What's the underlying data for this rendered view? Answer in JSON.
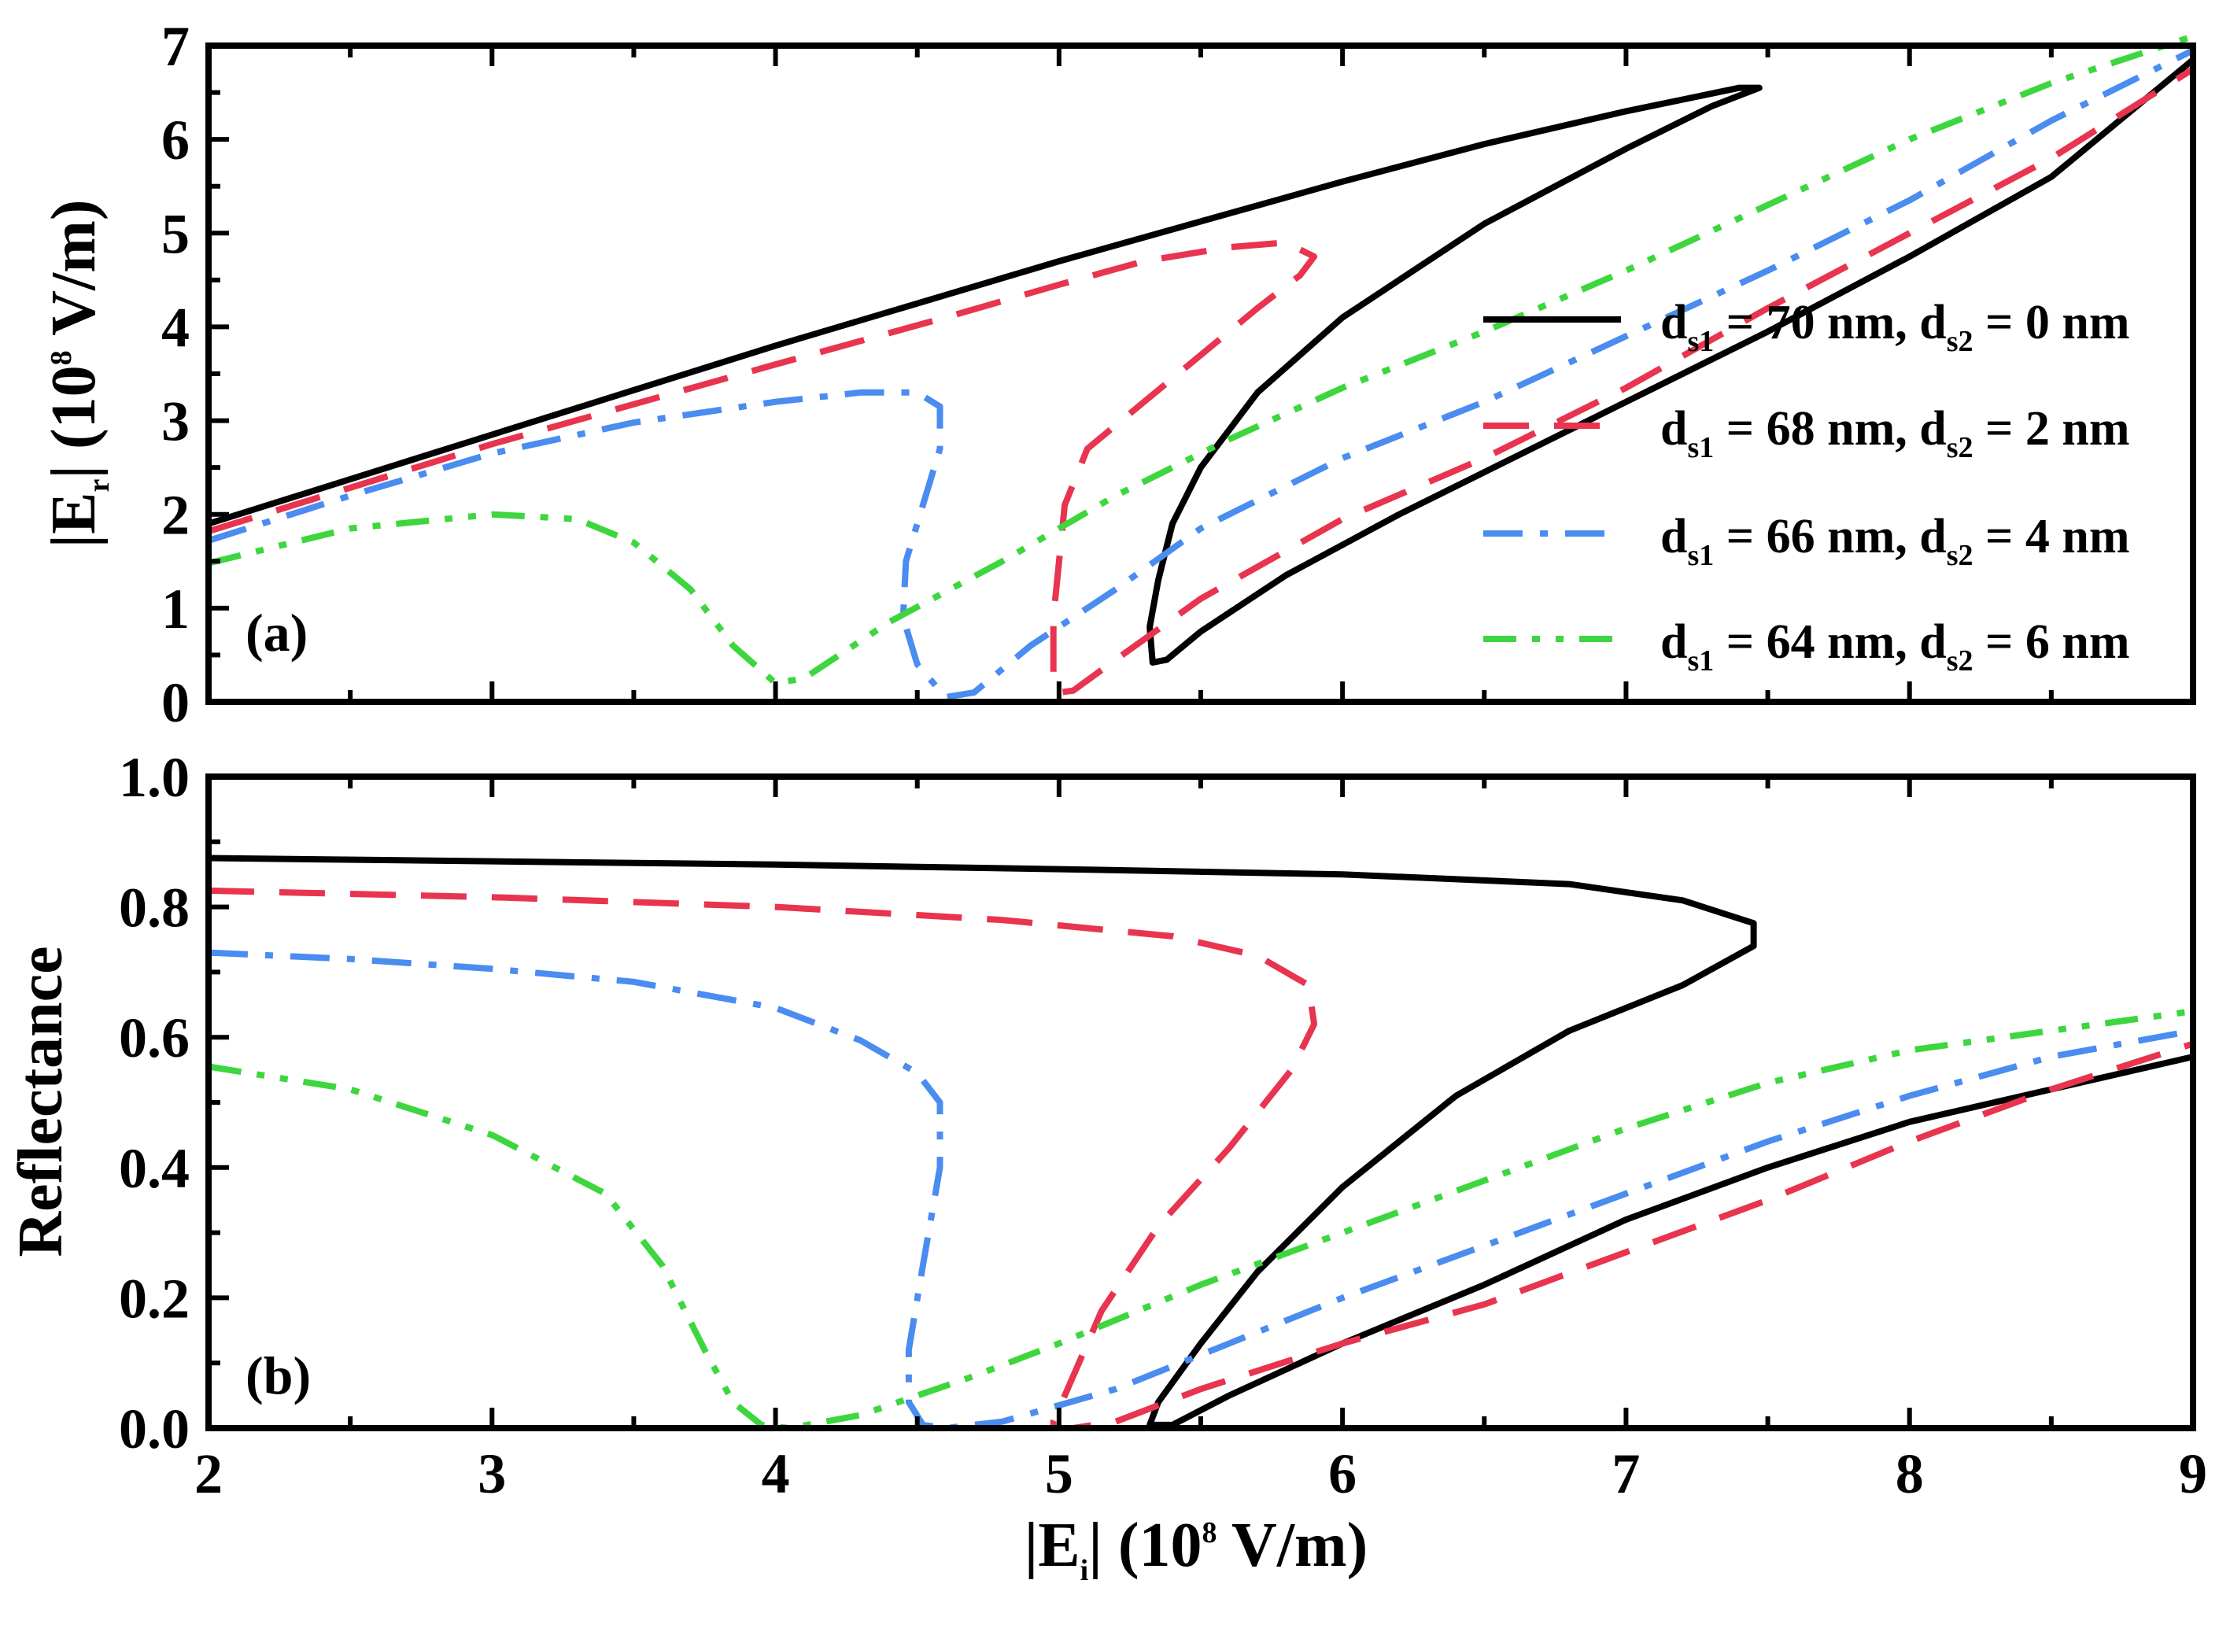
{
  "chart_data": [
    {
      "panel": "(a)",
      "type": "line",
      "title": "",
      "xlabel": "",
      "ylabel": "|Er| (10⁸ V/m)",
      "ylabel_parts": {
        "pre": "|E",
        "sub": "r",
        "mid": "| (10",
        "sup": "8",
        "post": " V/m)"
      },
      "xlim": [
        2,
        9
      ],
      "ylim": [
        0,
        7
      ],
      "yticks": [
        "0",
        "1",
        "2",
        "3",
        "4",
        "5",
        "6",
        "7"
      ],
      "grid": false,
      "legend_position": "right",
      "series": [
        {
          "name": "ds1 = 70 nm, ds2 = 0 nm",
          "color": "#000000",
          "dash": "solid",
          "points": [
            [
              2,
              1.9
            ],
            [
              3,
              2.85
            ],
            [
              4,
              3.8
            ],
            [
              5,
              4.7
            ],
            [
              6,
              5.55
            ],
            [
              6.5,
              5.95
            ],
            [
              7,
              6.3
            ],
            [
              7.4,
              6.55
            ],
            [
              7.47,
              6.55
            ],
            [
              7.3,
              6.35
            ],
            [
              7,
              5.9
            ],
            [
              6.5,
              5.1
            ],
            [
              6,
              4.1
            ],
            [
              5.7,
              3.3
            ],
            [
              5.5,
              2.5
            ],
            [
              5.4,
              1.9
            ],
            [
              5.35,
              1.3
            ],
            [
              5.32,
              0.8
            ],
            [
              5.33,
              0.42
            ],
            [
              5.38,
              0.45
            ],
            [
              5.5,
              0.75
            ],
            [
              5.8,
              1.35
            ],
            [
              6.2,
              2.0
            ],
            [
              6.7,
              2.75
            ],
            [
              7.5,
              3.95
            ],
            [
              8,
              4.75
            ],
            [
              8.5,
              5.6
            ],
            [
              9,
              6.85
            ]
          ]
        },
        {
          "name": "ds1 = 68 nm, ds2 = 2 nm",
          "color": "#e8344e",
          "dash": "dashed",
          "points": [
            [
              2,
              1.82
            ],
            [
              3,
              2.75
            ],
            [
              4,
              3.6
            ],
            [
              4.6,
              4.1
            ],
            [
              5,
              4.45
            ],
            [
              5.3,
              4.7
            ],
            [
              5.6,
              4.85
            ],
            [
              5.8,
              4.9
            ],
            [
              5.9,
              4.75
            ],
            [
              5.85,
              4.55
            ],
            [
              5.7,
              4.2
            ],
            [
              5.5,
              3.7
            ],
            [
              5.3,
              3.2
            ],
            [
              5.1,
              2.7
            ],
            [
              5.02,
              2.1
            ],
            [
              5.0,
              1.5
            ],
            [
              4.98,
              0.9
            ],
            [
              4.98,
              0.3
            ],
            [
              5.0,
              0.1
            ],
            [
              5.05,
              0.12
            ],
            [
              5.2,
              0.45
            ],
            [
              5.5,
              1.1
            ],
            [
              6,
              1.95
            ],
            [
              6.5,
              2.6
            ],
            [
              7,
              3.35
            ],
            [
              7.5,
              4.2
            ],
            [
              8,
              5.0
            ],
            [
              8.5,
              5.8
            ],
            [
              9,
              6.75
            ]
          ]
        },
        {
          "name": "ds1 = 66 nm, ds2 = 4 nm",
          "color": "#4a8cf0",
          "dash": "dashdot",
          "points": [
            [
              2,
              1.72
            ],
            [
              2.5,
              2.2
            ],
            [
              3,
              2.65
            ],
            [
              3.5,
              2.98
            ],
            [
              4,
              3.2
            ],
            [
              4.3,
              3.3
            ],
            [
              4.5,
              3.3
            ],
            [
              4.58,
              3.15
            ],
            [
              4.58,
              2.7
            ],
            [
              4.52,
              2.1
            ],
            [
              4.46,
              1.5
            ],
            [
              4.45,
              0.9
            ],
            [
              4.5,
              0.4
            ],
            [
              4.6,
              0.05
            ],
            [
              4.7,
              0.1
            ],
            [
              4.9,
              0.6
            ],
            [
              5.2,
              1.2
            ],
            [
              5.5,
              1.85
            ],
            [
              6,
              2.6
            ],
            [
              6.5,
              3.2
            ],
            [
              7,
              3.9
            ],
            [
              7.5,
              4.6
            ],
            [
              8,
              5.35
            ],
            [
              8.5,
              6.2
            ],
            [
              9,
              6.95
            ]
          ]
        },
        {
          "name": "ds1 = 64 nm, ds2 = 6 nm",
          "color": "#3ed63e",
          "dash": "dashdotdot",
          "points": [
            [
              2,
              1.48
            ],
            [
              2.5,
              1.85
            ],
            [
              3,
              2.0
            ],
            [
              3.3,
              1.95
            ],
            [
              3.5,
              1.7
            ],
            [
              3.7,
              1.2
            ],
            [
              3.85,
              0.6
            ],
            [
              4.0,
              0.2
            ],
            [
              4.1,
              0.25
            ],
            [
              4.4,
              0.85
            ],
            [
              4.8,
              1.5
            ],
            [
              5.2,
              2.2
            ],
            [
              5.6,
              2.8
            ],
            [
              6,
              3.35
            ],
            [
              6.5,
              3.95
            ],
            [
              7,
              4.6
            ],
            [
              7.5,
              5.3
            ],
            [
              8,
              6.0
            ],
            [
              8.5,
              6.6
            ],
            [
              9,
              7.1
            ]
          ]
        }
      ]
    },
    {
      "panel": "(b)",
      "type": "line",
      "title": "",
      "xlabel": "|Ei| (10⁸ V/m)",
      "xlabel_parts": {
        "pre": "|E",
        "sub": "i",
        "mid": "| (10",
        "sup": "8",
        "post": " V/m)"
      },
      "ylabel": "Reflectance",
      "xlim": [
        2,
        9
      ],
      "ylim": [
        0,
        1.0
      ],
      "xticks": [
        "2",
        "3",
        "4",
        "5",
        "6",
        "7",
        "8",
        "9"
      ],
      "yticks": [
        "0.0",
        "0.2",
        "0.4",
        "0.6",
        "0.8",
        "1.0"
      ],
      "grid": false,
      "series": [
        {
          "name": "ds1 = 70 nm, ds2 = 0 nm",
          "color": "#000000",
          "dash": "solid",
          "points": [
            [
              2,
              0.875
            ],
            [
              3,
              0.87
            ],
            [
              4,
              0.865
            ],
            [
              5,
              0.858
            ],
            [
              6,
              0.85
            ],
            [
              6.8,
              0.835
            ],
            [
              7.2,
              0.81
            ],
            [
              7.45,
              0.775
            ],
            [
              7.45,
              0.74
            ],
            [
              7.2,
              0.68
            ],
            [
              6.8,
              0.61
            ],
            [
              6.4,
              0.51
            ],
            [
              6.0,
              0.37
            ],
            [
              5.7,
              0.24
            ],
            [
              5.5,
              0.13
            ],
            [
              5.35,
              0.04
            ],
            [
              5.32,
              0.005
            ],
            [
              5.4,
              0.005
            ],
            [
              5.6,
              0.05
            ],
            [
              6.0,
              0.13
            ],
            [
              6.5,
              0.22
            ],
            [
              7.0,
              0.32
            ],
            [
              7.5,
              0.4
            ],
            [
              8.0,
              0.47
            ],
            [
              8.5,
              0.52
            ],
            [
              9.0,
              0.57
            ]
          ]
        },
        {
          "name": "ds1 = 68 nm, ds2 = 2 nm",
          "color": "#e8344e",
          "dash": "dashed",
          "points": [
            [
              2,
              0.825
            ],
            [
              3,
              0.815
            ],
            [
              4,
              0.8
            ],
            [
              4.8,
              0.78
            ],
            [
              5.4,
              0.755
            ],
            [
              5.7,
              0.725
            ],
            [
              5.88,
              0.68
            ],
            [
              5.9,
              0.62
            ],
            [
              5.82,
              0.55
            ],
            [
              5.6,
              0.43
            ],
            [
              5.35,
              0.31
            ],
            [
              5.15,
              0.18
            ],
            [
              5.05,
              0.08
            ],
            [
              4.98,
              0.01
            ],
            [
              4.98,
              0.0
            ],
            [
              5.05,
              0.0
            ],
            [
              5.2,
              0.01
            ],
            [
              5.5,
              0.06
            ],
            [
              6,
              0.13
            ],
            [
              6.5,
              0.19
            ],
            [
              7,
              0.27
            ],
            [
              7.5,
              0.35
            ],
            [
              8,
              0.44
            ],
            [
              8.5,
              0.52
            ],
            [
              9,
              0.59
            ]
          ]
        },
        {
          "name": "ds1 = 66 nm, ds2 = 4 nm",
          "color": "#4a8cf0",
          "dash": "dashdot",
          "points": [
            [
              2,
              0.73
            ],
            [
              2.5,
              0.72
            ],
            [
              3,
              0.705
            ],
            [
              3.5,
              0.685
            ],
            [
              4,
              0.645
            ],
            [
              4.3,
              0.595
            ],
            [
              4.5,
              0.545
            ],
            [
              4.58,
              0.5
            ],
            [
              4.58,
              0.4
            ],
            [
              4.52,
              0.25
            ],
            [
              4.47,
              0.12
            ],
            [
              4.47,
              0.04
            ],
            [
              4.52,
              0.005
            ],
            [
              4.6,
              0.0
            ],
            [
              4.8,
              0.01
            ],
            [
              5.2,
              0.06
            ],
            [
              5.6,
              0.13
            ],
            [
              6,
              0.2
            ],
            [
              6.5,
              0.28
            ],
            [
              7,
              0.36
            ],
            [
              7.5,
              0.44
            ],
            [
              8,
              0.51
            ],
            [
              8.5,
              0.57
            ],
            [
              9,
              0.61
            ]
          ]
        },
        {
          "name": "ds1 = 64 nm, ds2 = 6 nm",
          "color": "#3ed63e",
          "dash": "dashdotdot",
          "points": [
            [
              2,
              0.555
            ],
            [
              2.5,
              0.52
            ],
            [
              3,
              0.45
            ],
            [
              3.4,
              0.36
            ],
            [
              3.6,
              0.25
            ],
            [
              3.75,
              0.12
            ],
            [
              3.85,
              0.04
            ],
            [
              3.95,
              0.005
            ],
            [
              4.05,
              0.0
            ],
            [
              4.3,
              0.02
            ],
            [
              4.7,
              0.08
            ],
            [
              5.0,
              0.13
            ],
            [
              5.5,
              0.22
            ],
            [
              6,
              0.3
            ],
            [
              6.5,
              0.38
            ],
            [
              7,
              0.46
            ],
            [
              7.5,
              0.53
            ],
            [
              8,
              0.58
            ],
            [
              8.5,
              0.61
            ],
            [
              9,
              0.64
            ]
          ]
        }
      ]
    }
  ],
  "legend": [
    {
      "series": 0,
      "d1": "70 nm",
      "d2": "0 nm"
    },
    {
      "series": 1,
      "d1": "68 nm",
      "d2": "2 nm"
    },
    {
      "series": 2,
      "d1": "66 nm",
      "d2": "4 nm"
    },
    {
      "series": 3,
      "d1": "64 nm",
      "d2": "6 nm"
    }
  ],
  "legend_parts": {
    "d": "d",
    "sub1": "s1",
    "sub2": "s2",
    "eq": "= ",
    "sep": ", "
  }
}
